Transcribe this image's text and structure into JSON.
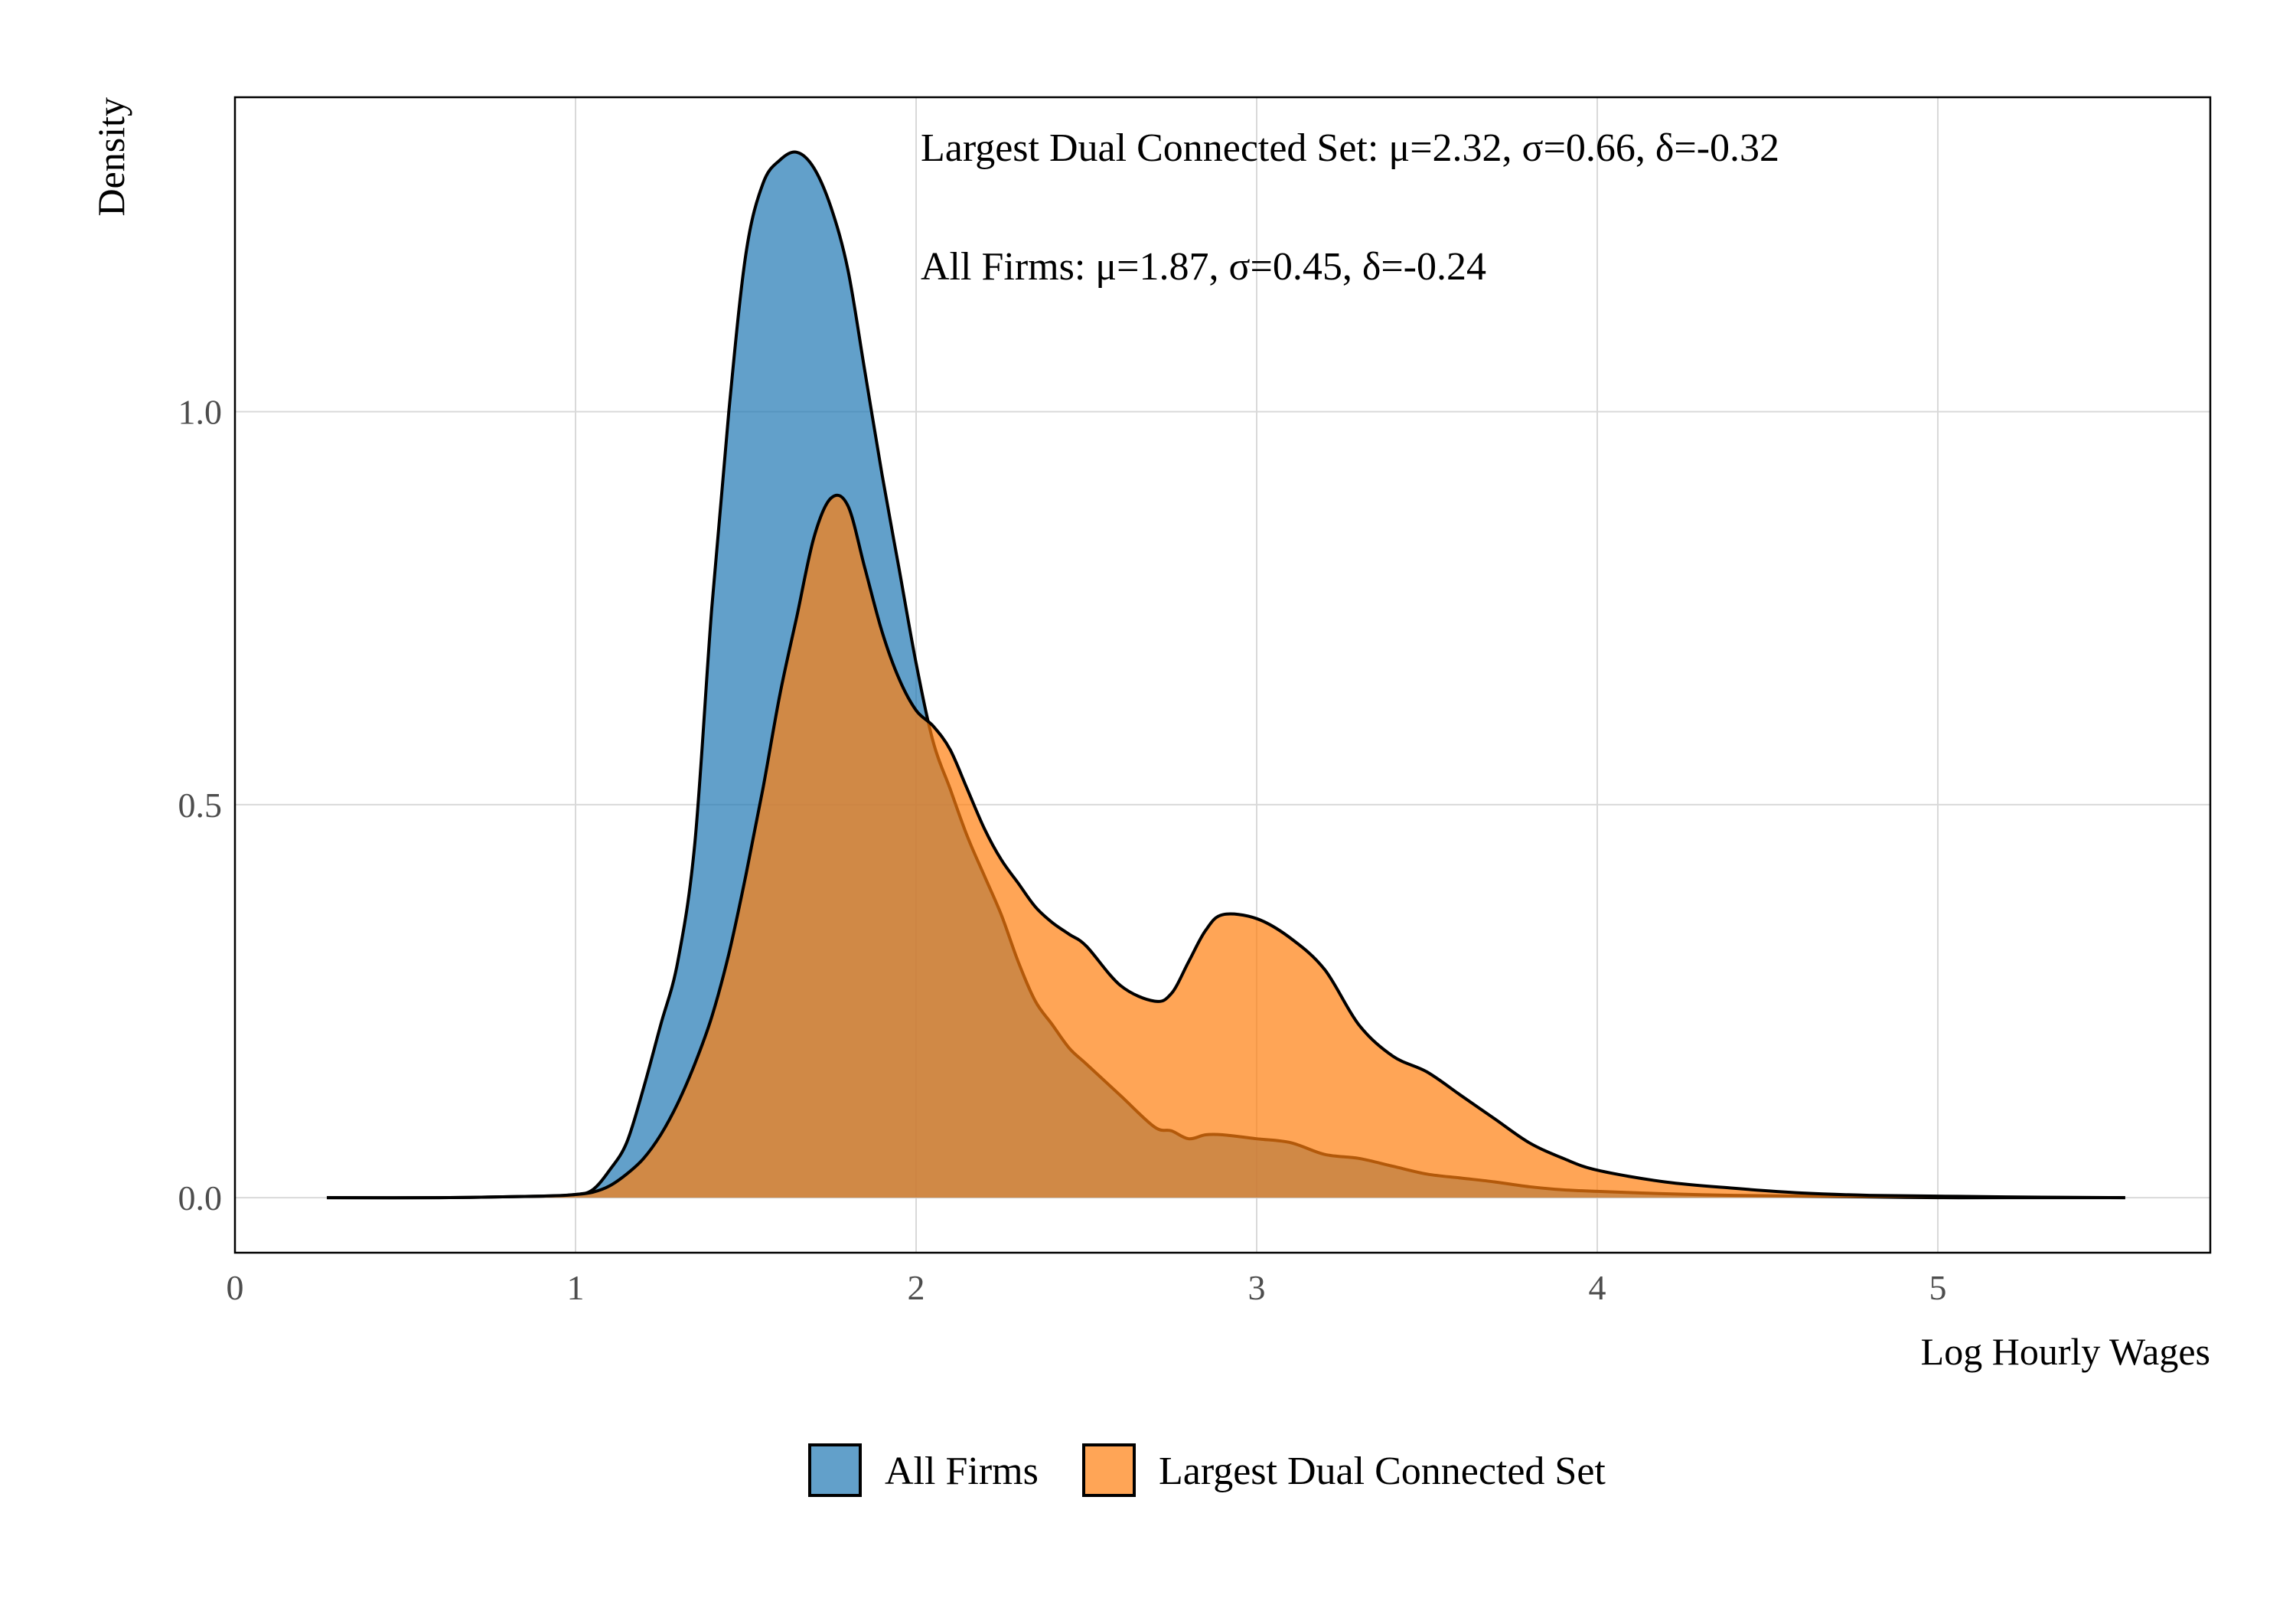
{
  "chart_data": {
    "type": "area",
    "title": "",
    "xlabel": "Log Hourly Wages",
    "ylabel": "Density",
    "xlim": [
      0,
      5.8
    ],
    "ylim": [
      -0.07,
      1.4
    ],
    "xticks": [
      0,
      1,
      2,
      3,
      4,
      5
    ],
    "xtick_labels": [
      "0",
      "1",
      "2",
      "3",
      "4",
      "5"
    ],
    "yticks": [
      0,
      0.5,
      1
    ],
    "ytick_labels": [
      "0.0",
      "0.5",
      "1.0"
    ],
    "grid": true,
    "legend_position": "bottom",
    "annotations": [
      "Largest Dual Connected Set: μ=2.32, σ=0.66, δ=-0.32",
      "All Firms: μ=1.87, σ=0.45, δ=-0.24"
    ],
    "series": [
      {
        "name": "All Firms",
        "color": "#1f77b4",
        "x": [
          0.27,
          0.6,
          0.9,
          1.0,
          1.05,
          1.1,
          1.15,
          1.2,
          1.25,
          1.3,
          1.35,
          1.4,
          1.45,
          1.5,
          1.55,
          1.6,
          1.65,
          1.7,
          1.75,
          1.8,
          1.85,
          1.9,
          1.95,
          2.0,
          2.05,
          2.1,
          2.15,
          2.2,
          2.25,
          2.3,
          2.35,
          2.4,
          2.45,
          2.5,
          2.6,
          2.7,
          2.75,
          2.8,
          2.85,
          2.9,
          3.0,
          3.1,
          3.2,
          3.3,
          3.4,
          3.5,
          3.6,
          3.7,
          3.8,
          3.9,
          4.0,
          4.2,
          4.4,
          4.6,
          4.8,
          5.0,
          5.2,
          5.55
        ],
        "values": [
          0.0,
          0.0,
          0.002,
          0.004,
          0.01,
          0.035,
          0.07,
          0.14,
          0.22,
          0.3,
          0.45,
          0.75,
          1.0,
          1.2,
          1.29,
          1.32,
          1.33,
          1.31,
          1.26,
          1.18,
          1.05,
          0.92,
          0.8,
          0.68,
          0.58,
          0.52,
          0.46,
          0.41,
          0.36,
          0.3,
          0.25,
          0.22,
          0.19,
          0.17,
          0.13,
          0.09,
          0.085,
          0.075,
          0.08,
          0.08,
          0.075,
          0.07,
          0.055,
          0.05,
          0.04,
          0.03,
          0.025,
          0.02,
          0.014,
          0.01,
          0.008,
          0.005,
          0.003,
          0.002,
          0.001,
          0.0,
          0.0,
          0.0
        ]
      },
      {
        "name": "Largest Dual Connected Set",
        "color": "#ff7f0e",
        "x": [
          0.27,
          0.6,
          0.9,
          1.0,
          1.05,
          1.1,
          1.15,
          1.2,
          1.25,
          1.3,
          1.35,
          1.4,
          1.45,
          1.5,
          1.55,
          1.6,
          1.65,
          1.7,
          1.75,
          1.8,
          1.85,
          1.9,
          1.95,
          2.0,
          2.05,
          2.1,
          2.15,
          2.2,
          2.25,
          2.3,
          2.35,
          2.4,
          2.45,
          2.5,
          2.6,
          2.7,
          2.75,
          2.8,
          2.85,
          2.9,
          3.0,
          3.1,
          3.2,
          3.3,
          3.4,
          3.5,
          3.6,
          3.7,
          3.8,
          3.9,
          4.0,
          4.2,
          4.4,
          4.6,
          4.8,
          5.0,
          5.2,
          5.55
        ],
        "values": [
          0.0,
          0.0,
          0.002,
          0.004,
          0.007,
          0.015,
          0.03,
          0.05,
          0.08,
          0.12,
          0.17,
          0.23,
          0.31,
          0.41,
          0.52,
          0.64,
          0.74,
          0.84,
          0.89,
          0.88,
          0.8,
          0.72,
          0.66,
          0.62,
          0.6,
          0.57,
          0.52,
          0.47,
          0.43,
          0.4,
          0.37,
          0.35,
          0.335,
          0.32,
          0.27,
          0.25,
          0.26,
          0.3,
          0.34,
          0.36,
          0.355,
          0.33,
          0.29,
          0.22,
          0.18,
          0.16,
          0.13,
          0.1,
          0.07,
          0.05,
          0.035,
          0.02,
          0.012,
          0.006,
          0.003,
          0.002,
          0.001,
          0.0
        ]
      }
    ]
  }
}
